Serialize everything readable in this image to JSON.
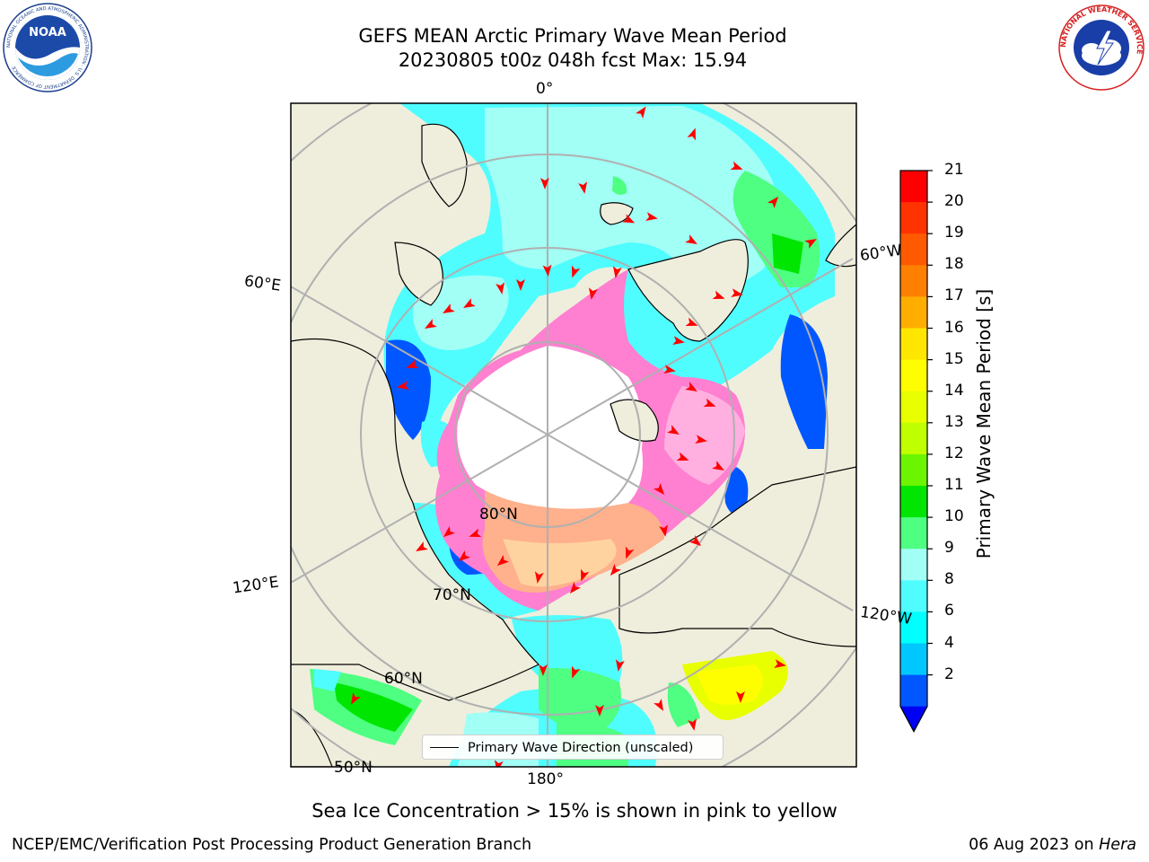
{
  "header": {
    "title_line1": "GEFS MEAN Arctic Primary Wave Mean Period",
    "title_line2": "20230805 t00z 048h fcst   Max: 15.94"
  },
  "logos": {
    "left": "noaa-logo",
    "left_text": "NOAA",
    "left_ring_text": "NATIONAL OCEANIC AND ATMOSPHERIC ADMINISTRATION · U.S. DEPARTMENT OF COMMERCE",
    "right": "nws-logo",
    "right_ring_text": "NATIONAL WEATHER SERVICE"
  },
  "map": {
    "projection": "north-polar-stereographic",
    "longitude_labels": [
      "0°",
      "60°W",
      "120°W",
      "180°",
      "120°E",
      "60°E"
    ],
    "latitude_labels": [
      "80°N",
      "70°N",
      "60°N",
      "50°N"
    ],
    "colors": {
      "land": "#efeedc",
      "no_data": "#ffffff",
      "grid": "#b0b0b0",
      "arrow": "#ff0000"
    }
  },
  "colorbar": {
    "title": "Primary Wave Mean Period [s]",
    "ticks": [
      "21",
      "20",
      "19",
      "18",
      "17",
      "16",
      "15",
      "14",
      "13",
      "12",
      "11",
      "10",
      "9",
      "8",
      "6",
      "4",
      "2"
    ],
    "bands_top_to_bottom": [
      "#ff0000",
      "#ff3300",
      "#ff5a00",
      "#ff8000",
      "#ffae00",
      "#ffe600",
      "#fffe00",
      "#e8ff00",
      "#c0ff00",
      "#6cf500",
      "#00e600",
      "#4eff82",
      "#a2fff5",
      "#4ffdff",
      "#00ffff",
      "#00c7ff",
      "#0057ff"
    ],
    "extend_color": "#0000f5"
  },
  "legend": {
    "label": "Primary Wave Direction (unscaled)"
  },
  "caption": "Sea Ice Concentration > 15% is shown in pink to yellow",
  "footer": {
    "left": "NCEP/EMC/Verification Post Processing Product Generation Branch",
    "right_prefix": "06 Aug 2023 on",
    "right_machine": "Hera"
  }
}
